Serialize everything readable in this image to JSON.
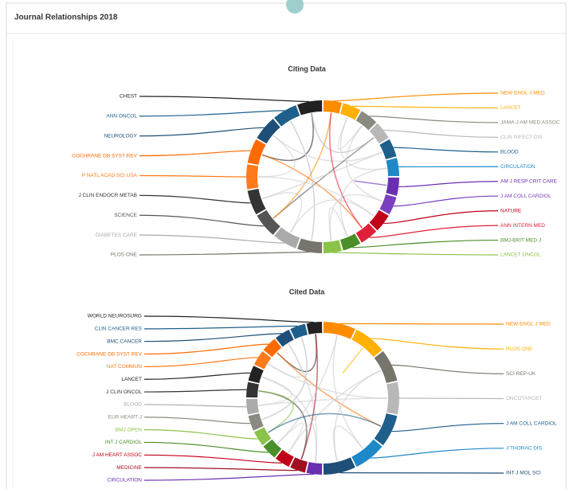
{
  "header": {
    "title": "Journal Relationships 2018"
  },
  "diagrams": [
    {
      "title": "Citing Data",
      "left": [
        {
          "label": "CHEST",
          "color": "#222222"
        },
        {
          "label": "ANN ONCOL",
          "color": "#1f5f8b"
        },
        {
          "label": "NEUROLOGY",
          "color": "#1f4f78"
        },
        {
          "label": "COCHRANE DB SYST REV",
          "color": "#ff6a00"
        },
        {
          "label": "P NATL ACAD SCI USA",
          "color": "#ff7a1a"
        },
        {
          "label": "J CLIN ENDOCR METAB",
          "color": "#333333"
        },
        {
          "label": "SCIENCE",
          "color": "#555555"
        },
        {
          "label": "DIABETES CARE",
          "color": "#aaaaaa"
        },
        {
          "label": "PLOS ONE",
          "color": "#77746b"
        }
      ],
      "right": [
        {
          "label": "NEW ENGL J MED",
          "color": "#ff8c00"
        },
        {
          "label": "LANCET",
          "color": "#ffb000"
        },
        {
          "label": "JAMA-J AM MED ASSOC",
          "color": "#8a8a80"
        },
        {
          "label": "CLIN INFECT DIS",
          "color": "#b8b8b8"
        },
        {
          "label": "BLOOD",
          "color": "#1f5f8b"
        },
        {
          "label": "CIRCULATION",
          "color": "#1e88c8"
        },
        {
          "label": "AM J RESP CRIT CARE",
          "color": "#6a2fb0"
        },
        {
          "label": "J AM COLL CARDIOL",
          "color": "#7a3fc0"
        },
        {
          "label": "NATURE",
          "color": "#c00018"
        },
        {
          "label": "ANN INTERN MED",
          "color": "#e0203a"
        },
        {
          "label": "BMJ-BRIT MED J",
          "color": "#4a8f2a"
        },
        {
          "label": "LANCET ONCOL",
          "color": "#8bc34a"
        }
      ]
    },
    {
      "title": "Cited Data",
      "left": [
        {
          "label": "WORLD NEUROSURG",
          "color": "#222222"
        },
        {
          "label": "CLIN CANCER RES",
          "color": "#1f5f8b"
        },
        {
          "label": "BMC CANCER",
          "color": "#1f4f78"
        },
        {
          "label": "COCHRANE DB SYST REV",
          "color": "#ff6a00"
        },
        {
          "label": "NAT COMMUN",
          "color": "#ff7a1a"
        },
        {
          "label": "LANCET",
          "color": "#222222"
        },
        {
          "label": "J CLIN ONCOL",
          "color": "#333333"
        },
        {
          "label": "BLOOD",
          "color": "#aaaaaa"
        },
        {
          "label": "EUR HEART J",
          "color": "#8a8a80"
        },
        {
          "label": "BMJ OPEN",
          "color": "#8bc34a"
        },
        {
          "label": "INT J CARDIOL",
          "color": "#4a8f2a"
        },
        {
          "label": "J AM HEART ASSOC",
          "color": "#c00018"
        },
        {
          "label": "MEDICINE",
          "color": "#a01020"
        },
        {
          "label": "CIRCULATION",
          "color": "#6a2fb0"
        }
      ],
      "right": [
        {
          "label": "NEW ENGL J MED",
          "color": "#ff8c00"
        },
        {
          "label": "PLOS ONE",
          "color": "#ffb000"
        },
        {
          "label": "SCI REP-UK",
          "color": "#77746b"
        },
        {
          "label": "ONCOTARGET",
          "color": "#b8b8b8"
        },
        {
          "label": "J AM COLL CARDIOL",
          "color": "#1f5f8b"
        },
        {
          "label": "J THORAC DIS",
          "color": "#1e88c8"
        },
        {
          "label": "INT J MOL SCI",
          "color": "#1f4f78"
        }
      ]
    }
  ]
}
